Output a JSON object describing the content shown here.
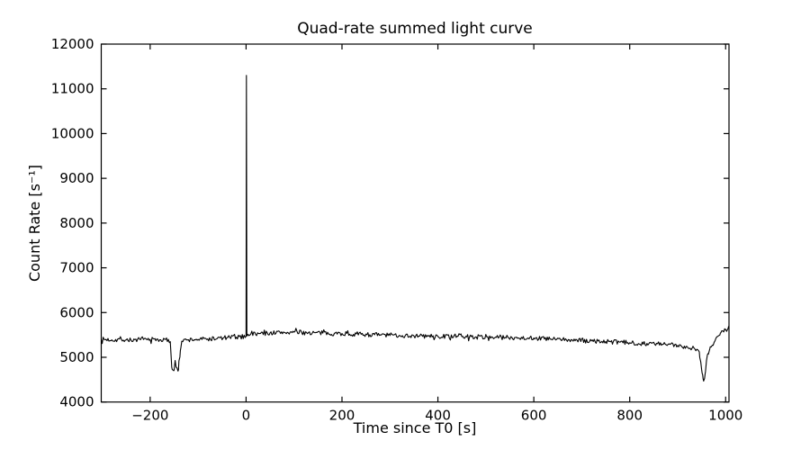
{
  "figure": {
    "background_color": "#ffffff"
  },
  "chart_data": {
    "type": "line",
    "title": "Quad-rate summed light curve",
    "xlabel": "Time since T0 [s]",
    "ylabel": "Count Rate [s⁻¹]",
    "xlim": [
      -302,
      1007
    ],
    "ylim": [
      4000,
      12000
    ],
    "xtick_values": [
      -200,
      0,
      200,
      400,
      600,
      800,
      1000
    ],
    "xtick_labels": [
      "−200",
      "0",
      "200",
      "400",
      "600",
      "800",
      "1000"
    ],
    "ytick_values": [
      4000,
      5000,
      6000,
      7000,
      8000,
      9000,
      10000,
      11000,
      12000
    ],
    "ytick_labels": [
      "4000",
      "5000",
      "6000",
      "7000",
      "8000",
      "9000",
      "10000",
      "11000",
      "12000"
    ],
    "grid": false,
    "legend": null,
    "line_color": "#000000",
    "line_width": 1.1,
    "axes_color": "#000000",
    "tick_length": 6,
    "features": {
      "baseline_rate": 5450,
      "burst_peak": {
        "t": 1,
        "rate": 11300
      },
      "dips": [
        {
          "t": -150,
          "min_rate": 4700
        },
        {
          "t": 955,
          "min_rate": 4500
        }
      ]
    },
    "series": [
      {
        "name": "quad-rate-sum",
        "sample_step": 2,
        "noise_amplitude": 52,
        "noise_seed": 7,
        "keypoints": [
          [
            -302,
            5400
          ],
          [
            -280,
            5390
          ],
          [
            -260,
            5400
          ],
          [
            -240,
            5385
          ],
          [
            -220,
            5395
          ],
          [
            -200,
            5400
          ],
          [
            -180,
            5390
          ],
          [
            -165,
            5385
          ],
          [
            -158,
            5350
          ],
          [
            -155,
            4780
          ],
          [
            -151,
            4700
          ],
          [
            -148,
            4930
          ],
          [
            -144,
            4760
          ],
          [
            -141,
            4720
          ],
          [
            -137,
            5150
          ],
          [
            -134,
            5360
          ],
          [
            -120,
            5390
          ],
          [
            -100,
            5400
          ],
          [
            -80,
            5410
          ],
          [
            -60,
            5420
          ],
          [
            -40,
            5440
          ],
          [
            -20,
            5450
          ],
          [
            -5,
            5460
          ],
          [
            0,
            5470
          ],
          [
            0.8,
            11300
          ],
          [
            1.6,
            5520
          ],
          [
            10,
            5520
          ],
          [
            30,
            5530
          ],
          [
            50,
            5545
          ],
          [
            80,
            5555
          ],
          [
            100,
            5560
          ],
          [
            130,
            5550
          ],
          [
            160,
            5540
          ],
          [
            200,
            5530
          ],
          [
            240,
            5515
          ],
          [
            280,
            5500
          ],
          [
            320,
            5490
          ],
          [
            360,
            5475
          ],
          [
            400,
            5465
          ],
          [
            440,
            5470
          ],
          [
            480,
            5455
          ],
          [
            520,
            5450
          ],
          [
            560,
            5440
          ],
          [
            600,
            5430
          ],
          [
            640,
            5405
          ],
          [
            680,
            5385
          ],
          [
            720,
            5365
          ],
          [
            760,
            5345
          ],
          [
            800,
            5325
          ],
          [
            840,
            5305
          ],
          [
            870,
            5290
          ],
          [
            900,
            5265
          ],
          [
            920,
            5235
          ],
          [
            935,
            5200
          ],
          [
            945,
            5120
          ],
          [
            948,
            4900
          ],
          [
            951,
            4640
          ],
          [
            953,
            4520
          ],
          [
            955,
            4500
          ],
          [
            957,
            4620
          ],
          [
            960,
            4930
          ],
          [
            963,
            5080
          ],
          [
            967,
            5190
          ],
          [
            972,
            5270
          ],
          [
            978,
            5370
          ],
          [
            984,
            5470
          ],
          [
            989,
            5540
          ],
          [
            994,
            5590
          ],
          [
            999,
            5620
          ],
          [
            1002,
            5580
          ],
          [
            1005,
            5640
          ],
          [
            1007,
            5690
          ]
        ]
      }
    ]
  }
}
